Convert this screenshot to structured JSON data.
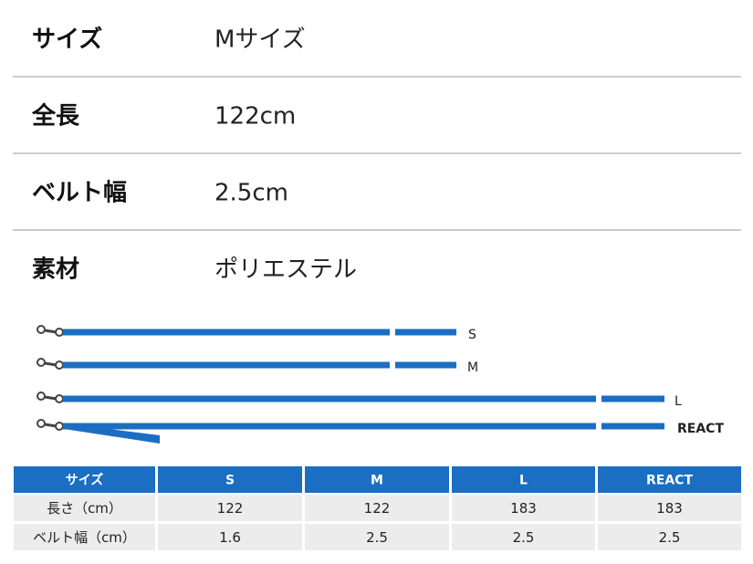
{
  "specs": [
    {
      "label": "サイズ",
      "value": "Mサイズ"
    },
    {
      "label": "全長",
      "value": "122cm"
    },
    {
      "label": "ベルト幅",
      "value": "2.5cm"
    },
    {
      "label": "素材",
      "value": "ポリエステル"
    }
  ],
  "leashes": [
    "S",
    "M",
    "L",
    "REACT"
  ],
  "table": {
    "header": [
      "サイズ",
      "S",
      "M",
      "L",
      "REACT"
    ],
    "rows": [
      [
        "長さ（cm）",
        122,
        122,
        183,
        183
      ],
      [
        "ベルト幅（cm）",
        1.6,
        2.5,
        2.5,
        2.5
      ]
    ]
  }
}
